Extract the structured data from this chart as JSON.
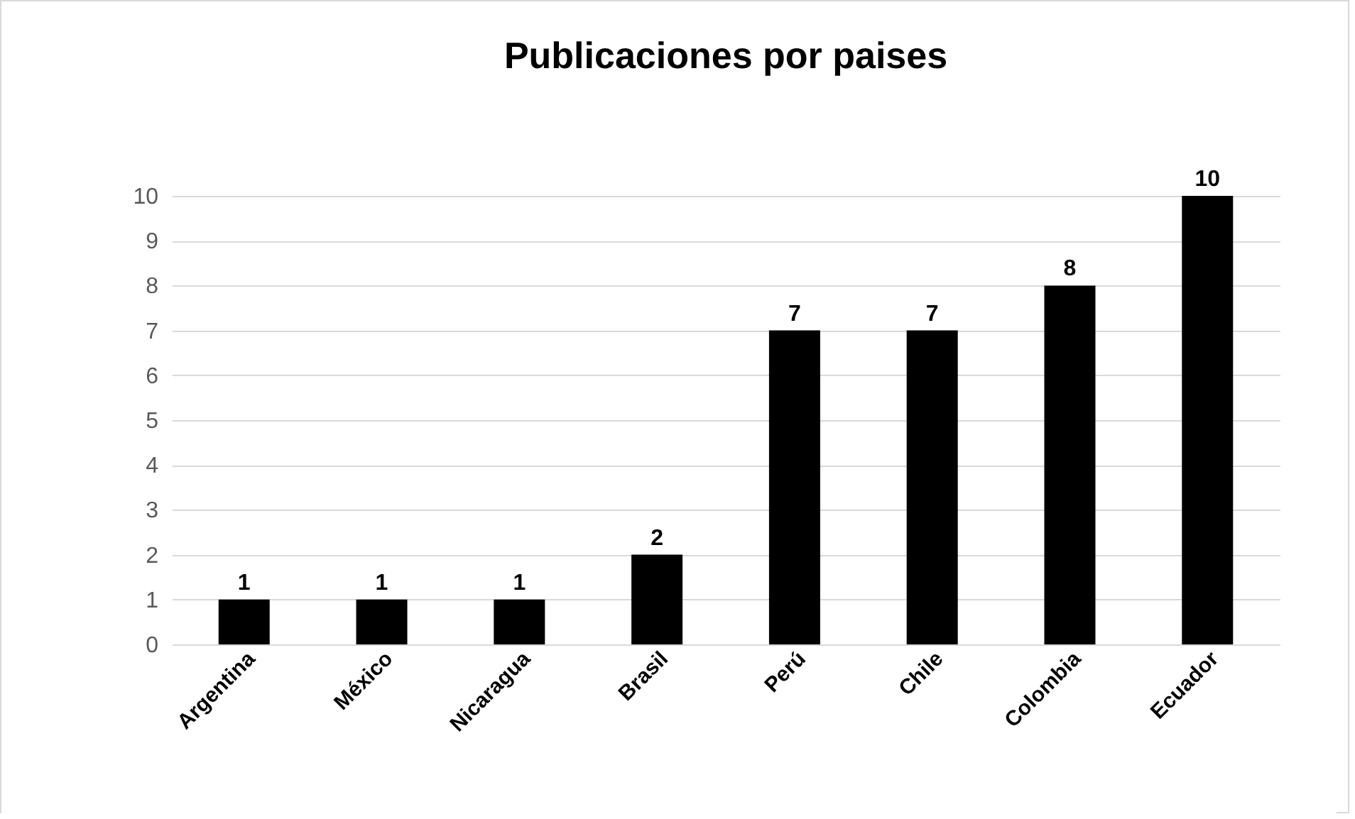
{
  "chart_data": {
    "type": "bar",
    "title": "Publicaciones por paises",
    "categories": [
      "Argentina",
      "México",
      "Nicaragua",
      "Brasil",
      "Perú",
      "Chile",
      "Colombia",
      "Ecuador"
    ],
    "values": [
      1,
      1,
      1,
      2,
      7,
      7,
      8,
      10
    ],
    "color": "#000000",
    "ylim": [
      0,
      10
    ],
    "yticks": [
      0,
      1,
      2,
      3,
      4,
      5,
      6,
      7,
      8,
      9,
      10
    ],
    "grid": "y",
    "data_labels": true
  }
}
